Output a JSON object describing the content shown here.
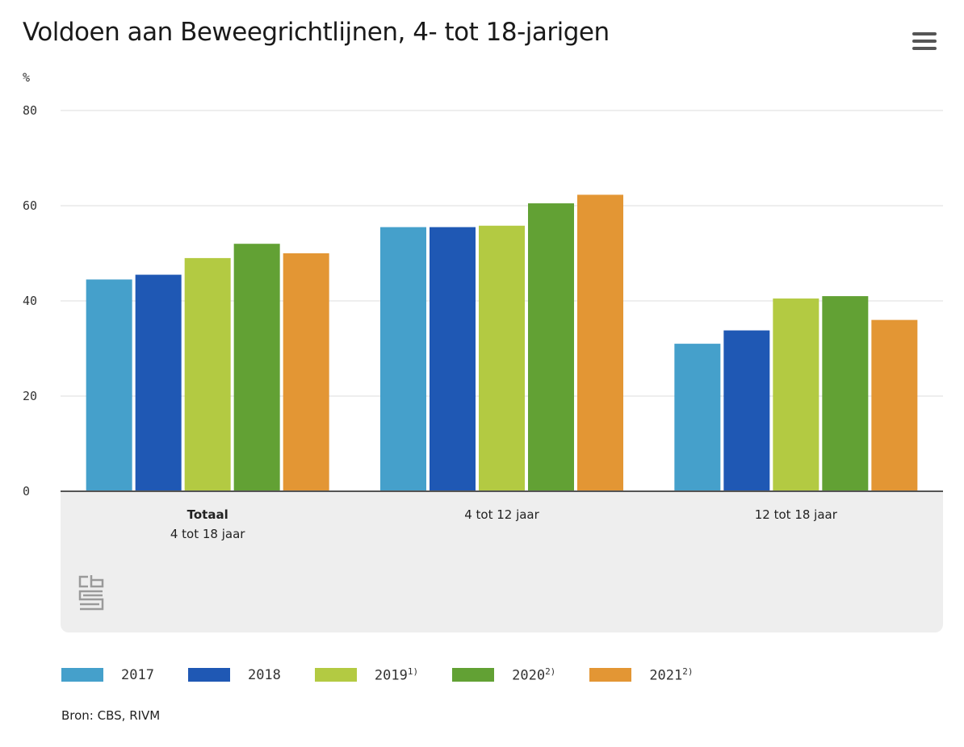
{
  "header": {
    "title": "Voldoen aan Beweegrichtlijnen, 4- tot 18-jarigen"
  },
  "menu": {
    "icon": "hamburger-menu-icon"
  },
  "chart_data": {
    "type": "bar",
    "title": "Voldoen aan Beweegrichtlijnen, 4- tot 18-jarigen",
    "ylabel": "%",
    "xlabel": "",
    "ylim": [
      0,
      80
    ],
    "yticks": [
      0,
      20,
      40,
      60,
      80
    ],
    "grid": true,
    "legend_position": "bottom",
    "categories": [
      {
        "bold": "Totaal",
        "sub": "4 tot 18 jaar"
      },
      {
        "bold": "",
        "sub": "4 tot 12 jaar"
      },
      {
        "bold": "",
        "sub": "12 tot 18 jaar"
      }
    ],
    "series": [
      {
        "name": "2017",
        "note": "",
        "color": "#45a0cb",
        "values": [
          44.5,
          55.5,
          31
        ]
      },
      {
        "name": "2018",
        "note": "",
        "color": "#1f58b4",
        "values": [
          45.5,
          55.5,
          33.8
        ]
      },
      {
        "name": "2019",
        "note": "1)",
        "color": "#b3ca42",
        "values": [
          49,
          55.8,
          40.5
        ]
      },
      {
        "name": "2020",
        "note": "2)",
        "color": "#62a134",
        "values": [
          52,
          60.5,
          41
        ]
      },
      {
        "name": "2021",
        "note": "2)",
        "color": "#e39634",
        "values": [
          50,
          62.3,
          36
        ]
      }
    ]
  },
  "logo": {
    "icon": "cbs-logo-icon"
  },
  "source": {
    "text": "Bron: CBS, RIVM"
  }
}
